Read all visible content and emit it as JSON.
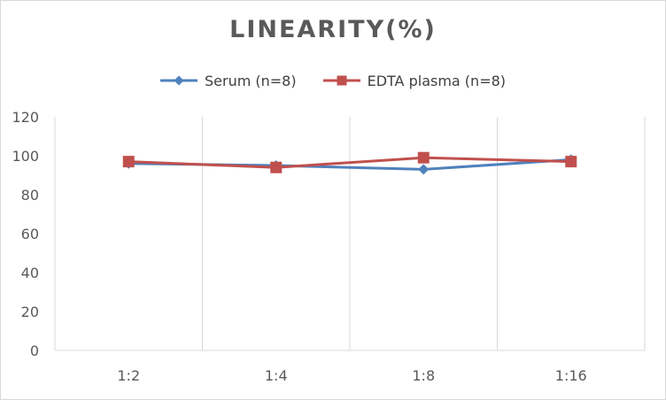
{
  "chart_data": {
    "type": "line",
    "title": "LINEARITY(%)",
    "categories": [
      "1:2",
      "1:4",
      "1:8",
      "1:16"
    ],
    "ylim": [
      0,
      120
    ],
    "yticks": [
      0,
      20,
      40,
      60,
      80,
      100,
      120
    ],
    "grid": "vertical",
    "legend_position": "top",
    "series": [
      {
        "name": "Serum (n=8)",
        "values": [
          96,
          95,
          93,
          98
        ],
        "color": "#4f81bd",
        "marker": "diamond"
      },
      {
        "name": "EDTA plasma (n=8)",
        "values": [
          97,
          94,
          99,
          97
        ],
        "color": "#c0504d",
        "marker": "square"
      }
    ]
  }
}
